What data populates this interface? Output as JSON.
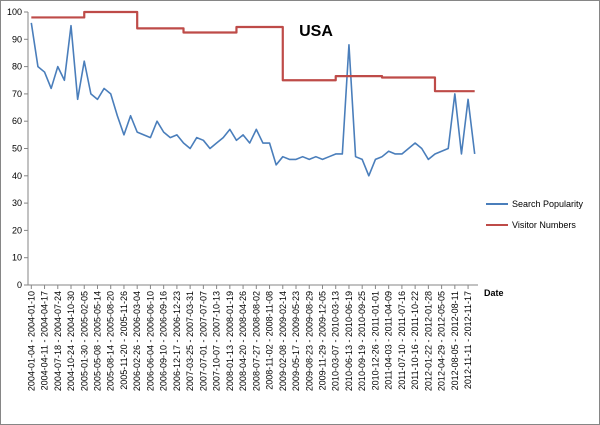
{
  "chart_data": {
    "type": "line",
    "title": "USA",
    "x_label": "Date",
    "categories": [
      "2004-01-04 - 2004-01-10",
      null,
      "2004-04-11 - 2004-04-17",
      null,
      "2004-07-18 - 2004-07-24",
      null,
      "2004-10-24 - 2004-10-30",
      null,
      "2005-01-30 - 2005-02-05",
      null,
      "2005-05-08 - 2005-05-14",
      null,
      "2005-08-14 - 2005-08-20",
      null,
      "2005-11-20 - 2005-11-26",
      null,
      "2006-02-26 - 2006-03-04",
      null,
      "2006-06-04 - 2006-06-10",
      null,
      "2006-09-10 - 2006-09-16",
      null,
      "2006-12-17 - 2006-12-23",
      null,
      "2007-03-25 - 2007-03-31",
      null,
      "2007-07-01 - 2007-07-07",
      null,
      "2007-10-07 - 2007-10-13",
      null,
      "2008-01-13 - 2008-01-19",
      null,
      "2008-04-20 - 2008-04-26",
      null,
      "2008-07-27 - 2008-08-02",
      null,
      "2008-11-02 - 2008-11-08",
      null,
      "2009-02-08 - 2009-02-14",
      null,
      "2009-05-17 - 2009-05-23",
      null,
      "2009-08-23 - 2009-08-29",
      null,
      "2009-11-29 - 2009-12-05",
      null,
      "2010-03-07 - 2010-03-13",
      null,
      "2010-06-13 - 2010-06-19",
      null,
      "2010-09-19 - 2010-09-25",
      null,
      "2010-12-26 - 2011-01-01",
      null,
      "2011-04-03 - 2011-04-09",
      null,
      "2011-07-10 - 2011-07-16",
      null,
      "2011-10-16 - 2011-10-22",
      null,
      "2012-01-22 - 2012-01-28",
      null,
      "2012-04-29 - 2012-05-05",
      null,
      "2012-08-05 - 2012-08-11",
      null,
      "2012-11-11 - 2012-11-17",
      null
    ],
    "series": [
      {
        "name": "Search Popularity",
        "color": "#4a7ebb",
        "step": false,
        "values": [
          96,
          80,
          78,
          72,
          80,
          75,
          95,
          68,
          82,
          70,
          68,
          72,
          70,
          62,
          55,
          62,
          56,
          55,
          54,
          60,
          56,
          54,
          55,
          52,
          50,
          54,
          53,
          50,
          52,
          54,
          57,
          53,
          55,
          52,
          57,
          52,
          52,
          44,
          47,
          46,
          46,
          47,
          46,
          47,
          46,
          47,
          48,
          48,
          88,
          47,
          46,
          40,
          46,
          47,
          49,
          48,
          48,
          50,
          52,
          50,
          46,
          48,
          49,
          50,
          70,
          48,
          68,
          48
        ]
      },
      {
        "name": "Visitor Numbers",
        "color": "#be4b48",
        "step": true,
        "values": [
          98,
          98,
          98,
          98,
          98,
          98,
          98,
          98,
          100,
          100,
          100,
          100,
          100,
          100,
          100,
          100,
          94,
          94,
          94,
          94,
          94,
          94,
          94,
          92.5,
          92.5,
          92.5,
          92.5,
          92.5,
          92.5,
          92.5,
          92.5,
          94.5,
          94.5,
          94.5,
          94.5,
          94.5,
          94.5,
          94.5,
          75,
          75,
          75,
          75,
          75,
          75,
          75,
          75,
          76.5,
          76.5,
          76.5,
          76.5,
          76.5,
          76.5,
          76.5,
          76,
          76,
          76,
          76,
          76,
          76,
          76,
          76,
          71,
          71,
          71,
          71,
          71,
          71,
          71
        ]
      }
    ],
    "ylim": [
      0,
      100
    ],
    "yticks": [
      0,
      10,
      20,
      30,
      40,
      50,
      60,
      70,
      80,
      90,
      100
    ],
    "grid": false,
    "legend": "right"
  }
}
